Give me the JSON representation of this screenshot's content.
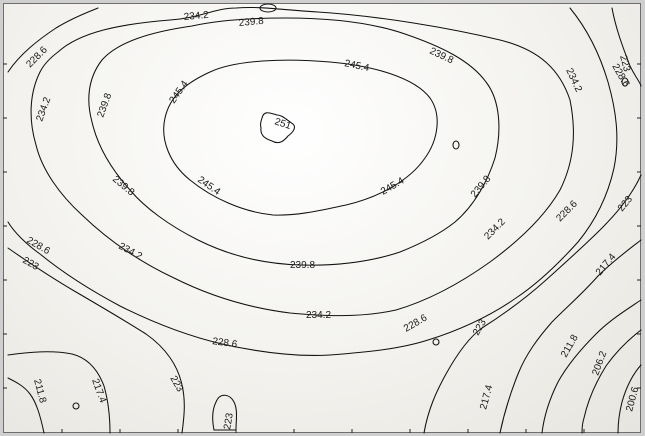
{
  "contour_labels": {
    "v251": "251",
    "v245": "245.4",
    "v239": "239.8",
    "v234": "234.2",
    "v228": "228.6",
    "v223": "223",
    "v217": "217.4",
    "v211": "211.8",
    "v206": "206.2",
    "v200": "200.6"
  }
}
